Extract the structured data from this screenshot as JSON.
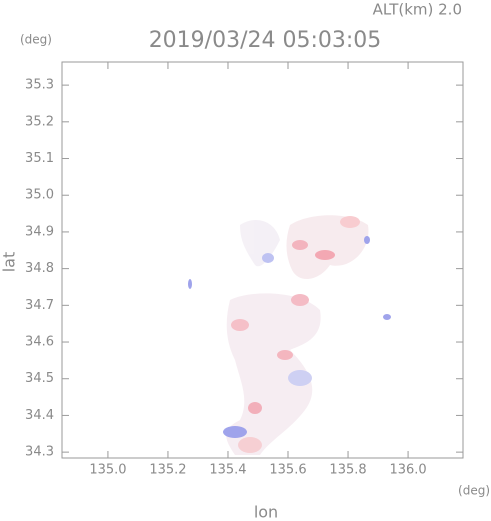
{
  "chart_data": {
    "type": "map",
    "title": "2019/03/24 05:03:05",
    "annotation": "ALT(km) 2.0",
    "y_unit": "(deg)",
    "x_unit": "(deg)",
    "xlabel": "lon",
    "ylabel": "lat",
    "xlim": [
      134.847,
      136.183
    ],
    "ylim": [
      34.284,
      35.363
    ],
    "xticks": [
      {
        "value": 135.0,
        "label": "135.0"
      },
      135.2,
      135.4,
      135.6,
      135.8,
      {
        "value": 136.0,
        "label": "136.0"
      }
    ],
    "yticks": [
      34.3,
      34.4,
      34.5,
      34.6,
      34.7,
      34.8,
      34.9,
      {
        "value": 35.0,
        "label": "35.0"
      },
      35.1,
      35.2,
      35.3
    ]
  }
}
